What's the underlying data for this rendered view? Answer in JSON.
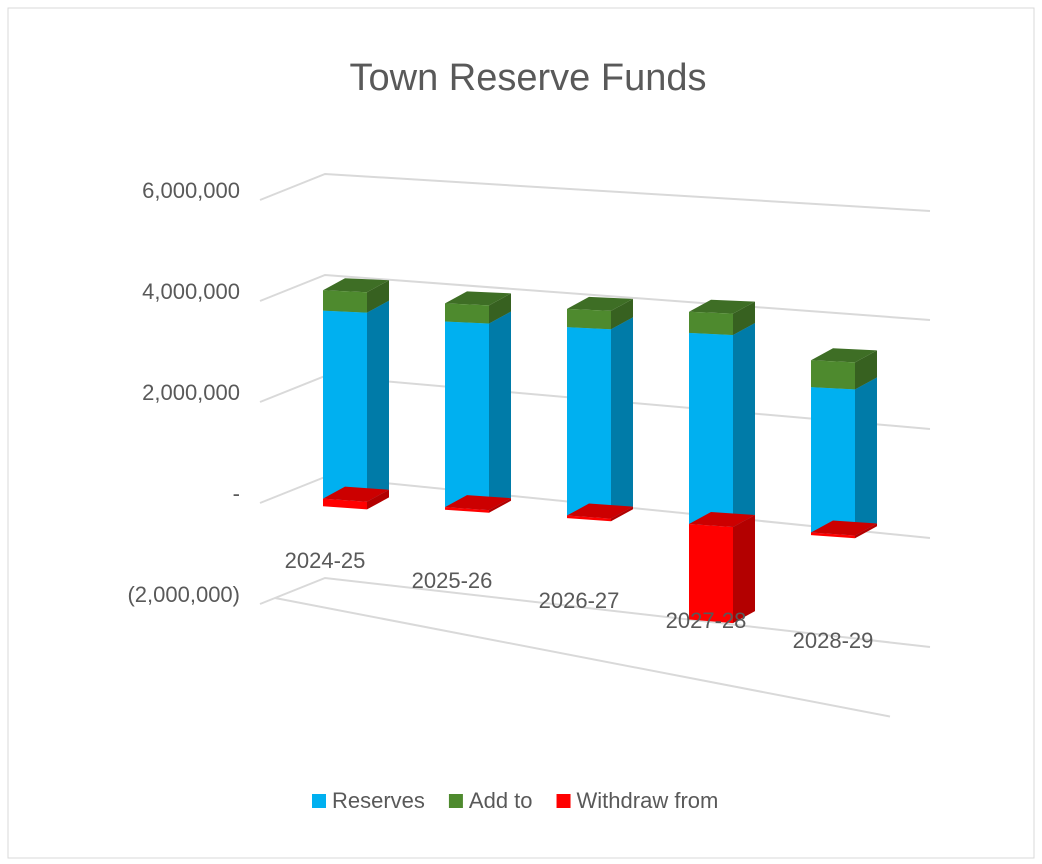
{
  "chart_data": {
    "type": "bar3d_stacked",
    "title": "Town Reserve Funds",
    "categories": [
      "2024-25",
      "2025-26",
      "2026-27",
      "2027-28",
      "2028-29"
    ],
    "series": [
      {
        "name": "Reserves",
        "color": "#00b0f0",
        "values": [
          3700000,
          3600000,
          3600000,
          3600000,
          2700000
        ]
      },
      {
        "name": "Add to",
        "color": "#4e8a2e",
        "values": [
          400000,
          350000,
          350000,
          400000,
          500000
        ]
      },
      {
        "name": "Withdraw from",
        "color": "#ff0000",
        "values": [
          -150000,
          -50000,
          -50000,
          -1800000,
          -50000
        ]
      }
    ],
    "ylim": [
      -2000000,
      6000000
    ],
    "yticks": [
      {
        "value": -2000000,
        "label": "(2,000,000)"
      },
      {
        "value": 0,
        "label": "-"
      },
      {
        "value": 2000000,
        "label": "2,000,000"
      },
      {
        "value": 4000000,
        "label": "4,000,000"
      },
      {
        "value": 6000000,
        "label": "6,000,000"
      }
    ],
    "grid": true,
    "legend": "bottom"
  }
}
